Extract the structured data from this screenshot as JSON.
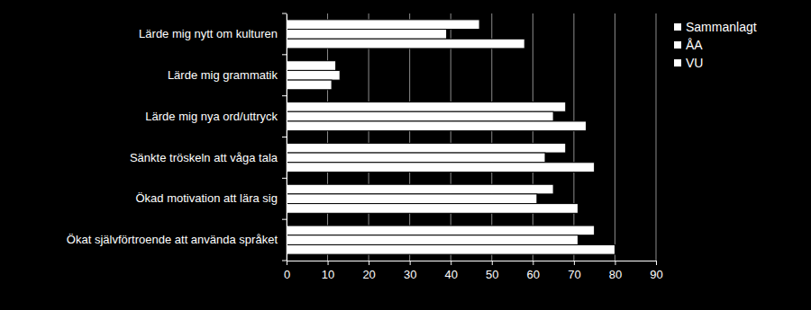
{
  "chart_data": {
    "type": "bar",
    "orientation": "horizontal",
    "categories": [
      "Lärde mig nytt om kulturen",
      "Lärde mig grammatik",
      "Lärde mig nya ord/uttryck",
      "Sänkte tröskeln att våga tala",
      "Ökad motivation att lära sig",
      "Ökat självförtroende att använda språket"
    ],
    "series": [
      {
        "name": "Sammanlagt",
        "color": "#ffffff",
        "values": [
          47,
          12,
          68,
          68,
          65,
          75
        ]
      },
      {
        "name": "ÅA",
        "color": "#ffffff",
        "values": [
          39,
          13,
          65,
          63,
          61,
          71
        ]
      },
      {
        "name": "VU",
        "color": "#ffffff",
        "values": [
          58,
          11,
          73,
          75,
          71,
          80
        ]
      }
    ],
    "xlim": [
      0,
      90
    ],
    "xticks": [
      0,
      10,
      20,
      30,
      40,
      50,
      60,
      70,
      80,
      90
    ],
    "grid": true,
    "legend": "upper right"
  }
}
